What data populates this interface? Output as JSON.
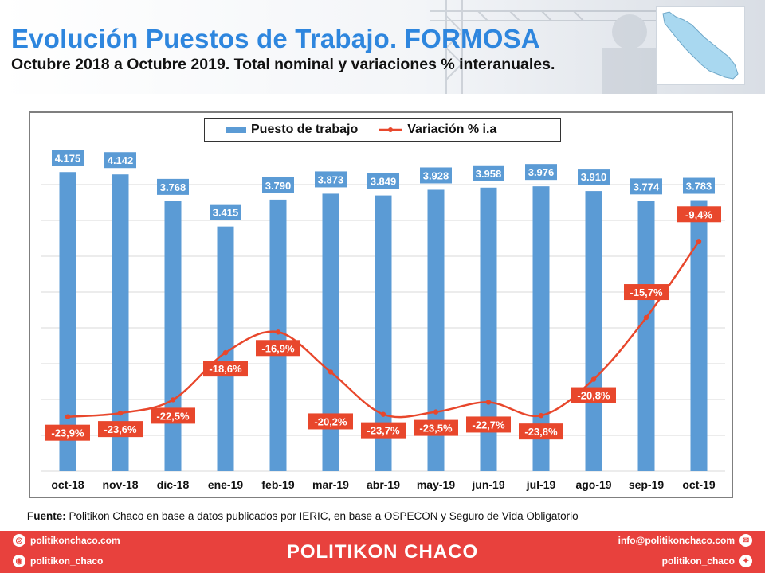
{
  "header": {
    "title": "Evolución Puestos de Trabajo. FORMOSA",
    "subtitle": "Octubre 2018 a Octubre 2019. Total nominal y variaciones % interanuales."
  },
  "chart_data": {
    "type": "bar",
    "categories": [
      "oct-18",
      "nov-18",
      "dic-18",
      "ene-19",
      "feb-19",
      "mar-19",
      "abr-19",
      "may-19",
      "jun-19",
      "jul-19",
      "ago-19",
      "sep-19",
      "oct-19"
    ],
    "series": [
      {
        "name": "Puesto de trabajo",
        "type": "bar",
        "values": [
          4175,
          4142,
          3768,
          3415,
          3790,
          3873,
          3849,
          3928,
          3958,
          3976,
          3910,
          3774,
          3783
        ],
        "labels": [
          "4.175",
          "4.142",
          "3.768",
          "3.415",
          "3.790",
          "3.873",
          "3.849",
          "3.928",
          "3.958",
          "3.976",
          "3.910",
          "3.774",
          "3.783"
        ],
        "color": "#5b9bd5"
      },
      {
        "name": "Variación % i.a",
        "type": "line",
        "values": [
          -23.9,
          -23.6,
          -22.5,
          -18.6,
          -16.9,
          -20.2,
          -23.7,
          -23.5,
          -22.7,
          -23.8,
          -20.8,
          -15.7,
          -9.4
        ],
        "labels": [
          "-23,9%",
          "-23,6%",
          "-22,5%",
          "-18,6%",
          "-16,9%",
          "-20,2%",
          "-23,7%",
          "-23,5%",
          "-22,7%",
          "-23,8%",
          "-20,8%",
          "-15,7%",
          "-9,4%"
        ],
        "color": "#e8472c"
      }
    ],
    "grid": true,
    "legend_position": "top"
  },
  "source": {
    "label": "Fuente:",
    "text": " Politikon Chaco en base a datos publicados por IERIC,  en base a OSPECON y Seguro de Vida Obligatorio"
  },
  "footer": {
    "brand": "POLITIKON CHACO",
    "website": "politikonchaco.com",
    "instagram": "politikon_chaco",
    "email": "info@politikonchaco.com",
    "twitter": "politikon_chaco"
  },
  "colors": {
    "accent": "#2e86de",
    "footer_bg": "#e8413d"
  }
}
